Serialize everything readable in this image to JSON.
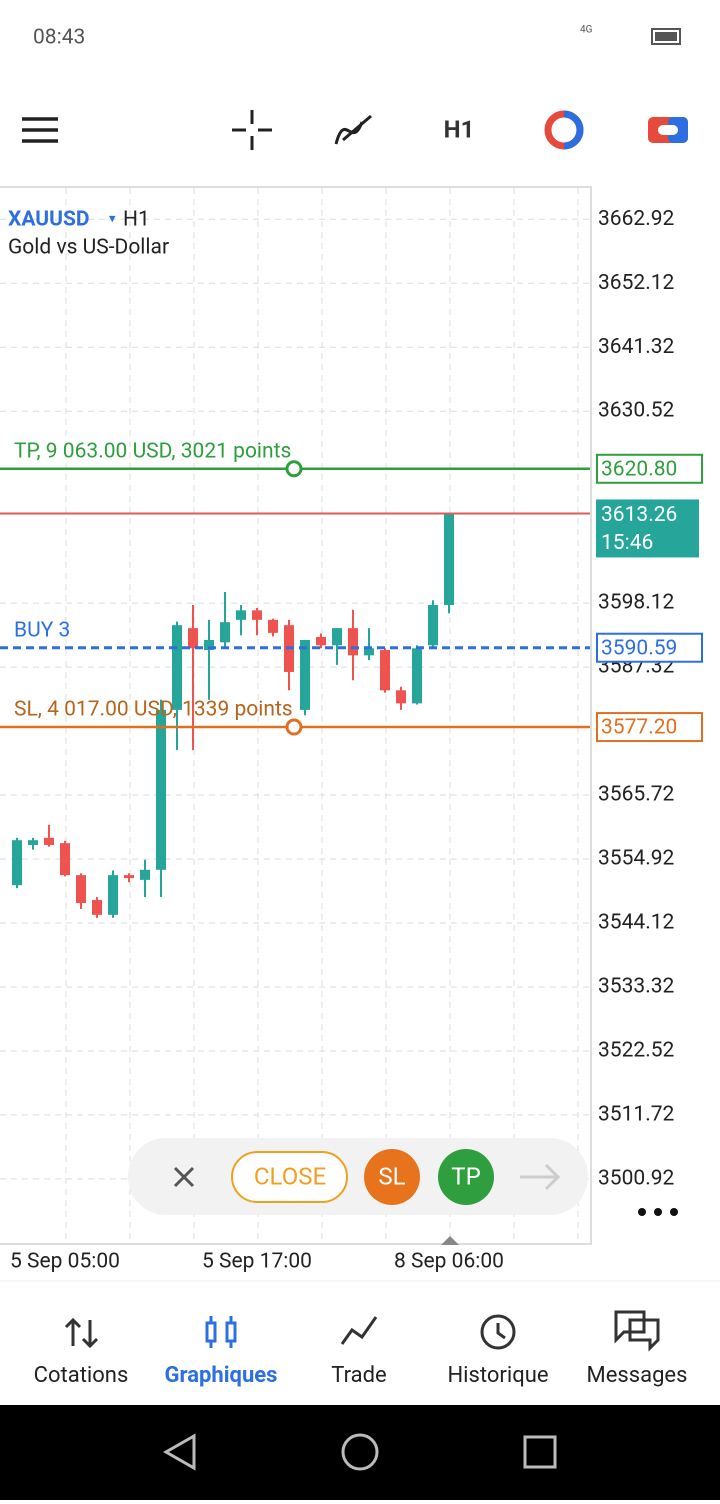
{
  "status_bar": {
    "time": "08:43",
    "network": "4G"
  },
  "toolbar": {
    "timeframe": "H1"
  },
  "chart_data": {
    "type": "candlestick",
    "symbol": "XAUUSD",
    "timeframe": "H1",
    "description": "Gold vs US-Dollar",
    "categories": [
      null,
      null,
      null,
      "5 Sep 05:00",
      null,
      null,
      null,
      null,
      null,
      null,
      null,
      null,
      null,
      null,
      null,
      "5 Sep 17:00",
      null,
      null,
      null,
      null,
      null,
      null,
      null,
      null,
      null,
      null,
      null,
      "8 Sep 06:00"
    ],
    "open": [
      3550.5,
      3557.3,
      3558.5,
      3557.6,
      3552.2,
      3548,
      3545.5,
      3552.2,
      3551.4,
      3553.1,
      3580.1,
      3593.9,
      3590.2,
      3591.5,
      3595.3,
      3596.9,
      3595.3,
      3594.4,
      3580.1,
      3592.4,
      3591,
      3593.9,
      3589.3,
      3590.2,
      3583.4,
      3581.2,
      3591,
      3597.8
    ],
    "high": [
      3558.5,
      3558.5,
      3560.7,
      3558,
      3552.5,
      3548.5,
      3553,
      3552.5,
      3554.8,
      3581.8,
      3595,
      3597.8,
      3595.3,
      3600,
      3597.8,
      3597.3,
      3595.5,
      3595.3,
      3591.9,
      3593,
      3593.9,
      3597,
      3593.9,
      3590.5,
      3584,
      3591,
      3598.6,
      3613.3
    ],
    "low": [
      3550,
      3556.5,
      3557,
      3552,
      3546.5,
      3545,
      3545,
      3551,
      3548.5,
      3548.5,
      3573.3,
      3573.3,
      3581.8,
      3590.5,
      3592.7,
      3592.7,
      3592.5,
      3583.4,
      3579.2,
      3590.5,
      3587.7,
      3585.1,
      3588.5,
      3583,
      3580.1,
      3581,
      3590.5,
      3596.4
    ],
    "close": [
      3558.1,
      3558.1,
      3557.3,
      3552.2,
      3547.5,
      3545.5,
      3552.2,
      3551.7,
      3553.1,
      3580.1,
      3594.4,
      3590.5,
      3591.9,
      3594.9,
      3596.9,
      3595.3,
      3593.1,
      3586.5,
      3591.9,
      3591,
      3593.9,
      3589.3,
      3590.5,
      3583.4,
      3581.2,
      3590.5,
      3597.8,
      3613.3
    ],
    "up_color": "#26a69a",
    "down_color": "#ef5350",
    "ylim": [
      3490.1,
      3668.2
    ],
    "yticks": [
      3662.92,
      3652.12,
      3641.32,
      3630.52,
      3598.12,
      3587.32,
      3565.72,
      3554.92,
      3544.12,
      3533.32,
      3522.52,
      3511.72,
      3500.92
    ],
    "grid": true,
    "levels": [
      {
        "text": "TP, 9 063.00 USD, 3021 points",
        "value": 3620.8,
        "label": "3620.80",
        "color": "#2e9e3e"
      },
      {
        "text": "BUY 3",
        "value": 3590.59,
        "label": "3590.59",
        "color": "#2d6fe0"
      },
      {
        "text": "SL, 4 017.00 USD, 1339 points",
        "value": 3577.2,
        "label": "3577.20",
        "color": "#e07020"
      }
    ],
    "current_price": {
      "value": 3613.26,
      "timer": "15:46",
      "color": "#26a69a"
    }
  },
  "trade_buttons": {
    "close": "CLOSE",
    "sl": "SL",
    "tp": "TP"
  },
  "nav": {
    "items": [
      "Cotations",
      "Graphiques",
      "Trade",
      "Historique",
      "Messages"
    ],
    "active": 1
  }
}
